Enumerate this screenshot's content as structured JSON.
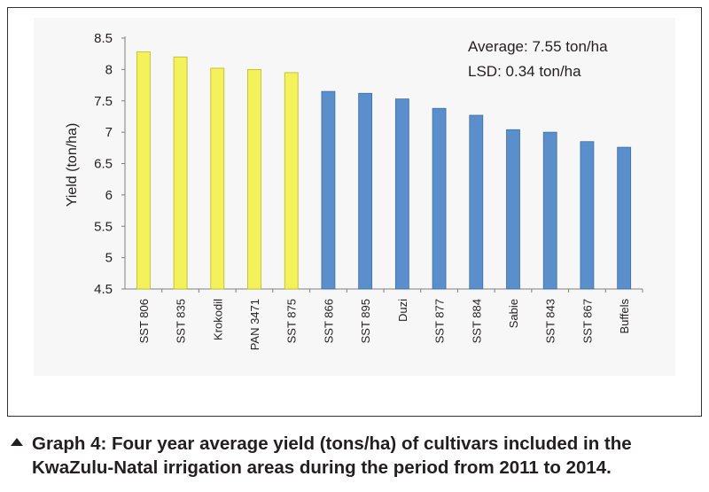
{
  "chart_data": {
    "type": "bar",
    "categories": [
      "SST 806",
      "SST 835",
      "Krokodil",
      "PAN 3471",
      "SST 875",
      "SST 866",
      "SST 895",
      "Duzi",
      "SST 877",
      "SST 884",
      "Sabie",
      "SST 843",
      "SST 867",
      "Buffels"
    ],
    "values": [
      8.28,
      8.2,
      8.02,
      8.0,
      7.95,
      7.65,
      7.62,
      7.53,
      7.38,
      7.27,
      7.04,
      7.0,
      6.85,
      6.76
    ],
    "bar_colors": [
      "#f4f25a",
      "#f4f25a",
      "#f4f25a",
      "#f4f25a",
      "#f4f25a",
      "#5b8fcb",
      "#5b8fcb",
      "#5b8fcb",
      "#5b8fcb",
      "#5b8fcb",
      "#5b8fcb",
      "#5b8fcb",
      "#5b8fcb",
      "#5b8fcb"
    ],
    "bar_border_colors": [
      "#b9b726",
      "#b9b726",
      "#b9b726",
      "#b9b726",
      "#b9b726",
      "#3e6ea7",
      "#3e6ea7",
      "#3e6ea7",
      "#3e6ea7",
      "#3e6ea7",
      "#3e6ea7",
      "#3e6ea7",
      "#3e6ea7",
      "#3e6ea7"
    ],
    "ylabel": "Yield (ton/ha)",
    "ylim": [
      4.5,
      8.5
    ],
    "yticks": [
      "4.5",
      "5",
      "5.5",
      "6",
      "6.5",
      "7",
      "7.5",
      "8",
      "8.5"
    ],
    "grid": false,
    "annotations": [
      "Average: 7.55 ton/ha",
      "LSD: 0.34 ton/ha"
    ]
  },
  "caption": {
    "line1": "Graph 4: Four year average yield (tons/ha) of cultivars included in the",
    "line2": "KwaZulu-Natal irrigation areas during the period from 2011 to 2014."
  }
}
